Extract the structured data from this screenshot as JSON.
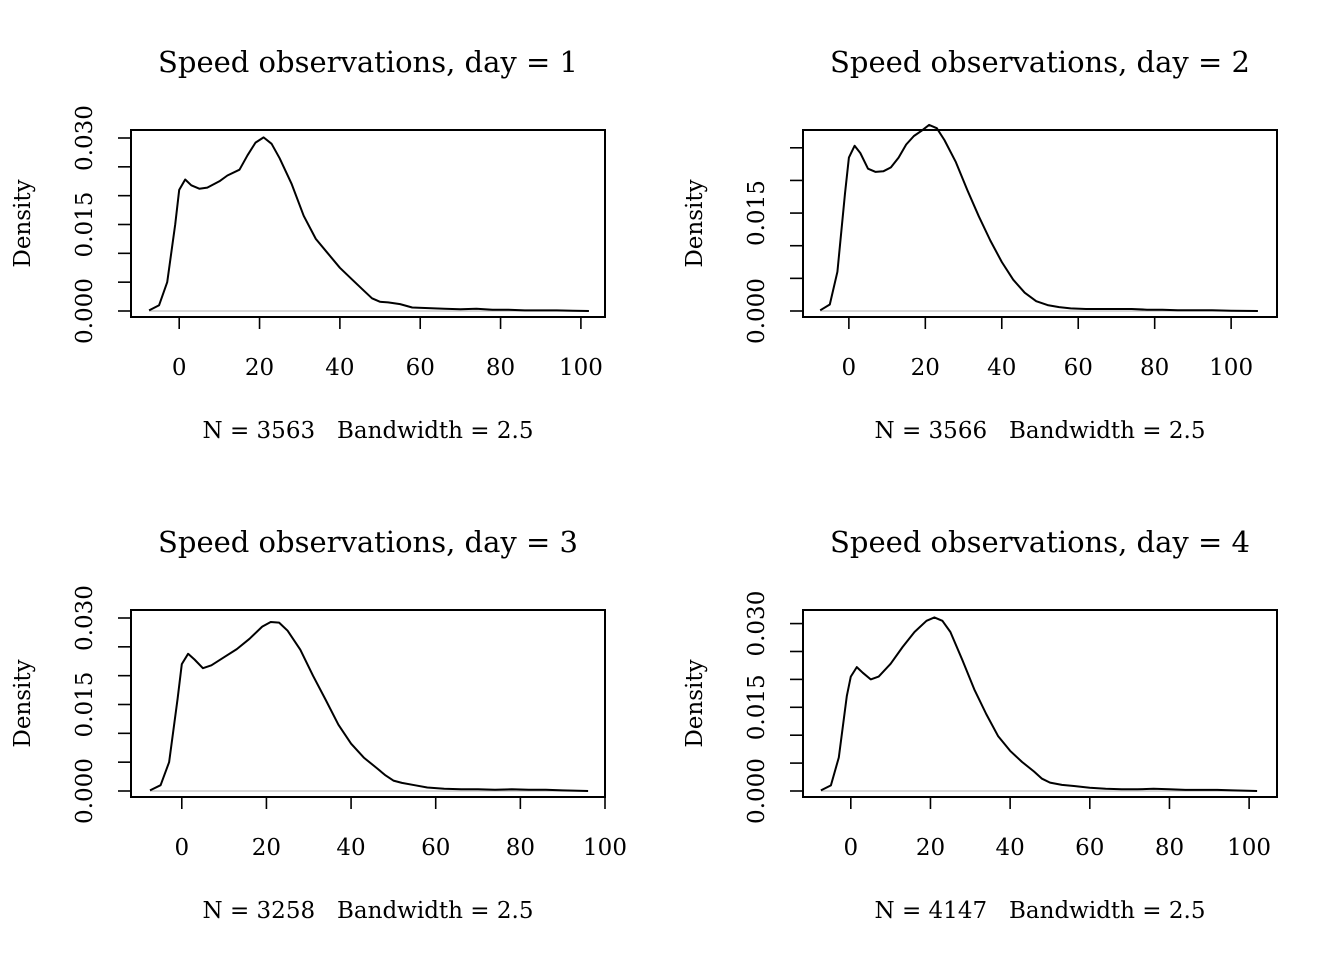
{
  "chart_data": [
    {
      "type": "line",
      "title": "Speed observations, day =  1",
      "subtitle": "N = 3563   Bandwidth = 2.5",
      "ylabel": "Density",
      "xlim": [
        -12,
        106
      ],
      "ylim": [
        0,
        0.03
      ],
      "x_ticks": [
        0,
        20,
        40,
        60,
        80,
        100
      ],
      "y_ticks": [
        0,
        0.005,
        0.01,
        0.015,
        0.02,
        0.025,
        0.03
      ],
      "y_tick_labels": [
        {
          "value": 0,
          "label": "0.000"
        },
        {
          "value": 0.015,
          "label": "0.015"
        },
        {
          "value": 0.03,
          "label": "0.030"
        }
      ],
      "grid": false,
      "series": [
        {
          "x": [
            -7.5,
            -5,
            -3,
            -1,
            0,
            1.5,
            3,
            5,
            7,
            10,
            12,
            15,
            17,
            19,
            21,
            23,
            25,
            28,
            31,
            34,
            37,
            40,
            43,
            46,
            48,
            50,
            52,
            55,
            58,
            62,
            66,
            70,
            74,
            78,
            82,
            86,
            90,
            94,
            98,
            102
          ],
          "y": [
            0.0001,
            0.001,
            0.005,
            0.015,
            0.021,
            0.0228,
            0.0218,
            0.0212,
            0.0214,
            0.0225,
            0.0235,
            0.0245,
            0.027,
            0.0292,
            0.0301,
            0.029,
            0.0265,
            0.022,
            0.0165,
            0.0125,
            0.01,
            0.0075,
            0.0055,
            0.0035,
            0.0022,
            0.0016,
            0.0015,
            0.0012,
            0.0006,
            0.0005,
            0.0004,
            0.0003,
            0.0004,
            0.0002,
            0.0002,
            0.0001,
            0.0001,
            0.0001,
            5e-05,
            0.0
          ]
        }
      ]
    },
    {
      "type": "line",
      "title": "Speed observations, day =  2",
      "subtitle": "N = 3566   Bandwidth = 2.5",
      "ylabel": "Density",
      "xlim": [
        -12,
        112
      ],
      "ylim": [
        0,
        0.0265
      ],
      "x_ticks": [
        0,
        20,
        40,
        60,
        80,
        100
      ],
      "y_ticks": [
        0,
        0.005,
        0.01,
        0.015,
        0.02,
        0.025
      ],
      "y_tick_labels": [
        {
          "value": 0,
          "label": "0.000"
        },
        {
          "value": 0.015,
          "label": "0.015"
        }
      ],
      "grid": false,
      "series": [
        {
          "x": [
            -7.5,
            -5,
            -3,
            -1,
            0,
            1.5,
            3,
            5,
            7,
            9,
            11,
            13,
            15,
            17,
            19,
            21,
            23,
            25,
            28,
            31,
            34,
            37,
            40,
            43,
            46,
            49,
            52,
            55,
            58,
            62,
            66,
            70,
            74,
            78,
            82,
            86,
            90,
            95,
            100,
            107
          ],
          "y": [
            0.0001,
            0.001,
            0.006,
            0.018,
            0.0235,
            0.0253,
            0.0242,
            0.0218,
            0.0213,
            0.0214,
            0.022,
            0.0235,
            0.0255,
            0.0268,
            0.0276,
            0.0285,
            0.028,
            0.0262,
            0.0228,
            0.0185,
            0.0145,
            0.0108,
            0.0075,
            0.0048,
            0.0028,
            0.0015,
            0.0009,
            0.0006,
            0.0004,
            0.0003,
            0.0003,
            0.0003,
            0.0003,
            0.0002,
            0.0002,
            0.0001,
            0.0001,
            0.0001,
            5e-05,
            0.0
          ]
        }
      ]
    },
    {
      "type": "line",
      "title": "Speed observations, day =  3",
      "subtitle": "N = 3258   Bandwidth = 2.5",
      "ylabel": "Density",
      "xlim": [
        -12,
        100
      ],
      "ylim": [
        0,
        0.03
      ],
      "x_ticks": [
        0,
        20,
        40,
        60,
        80,
        100
      ],
      "y_ticks": [
        0,
        0.005,
        0.01,
        0.015,
        0.02,
        0.025,
        0.03
      ],
      "y_tick_labels": [
        {
          "value": 0,
          "label": "0.000"
        },
        {
          "value": 0.015,
          "label": "0.015"
        },
        {
          "value": 0.03,
          "label": "0.030"
        }
      ],
      "grid": false,
      "series": [
        {
          "x": [
            -7.5,
            -5,
            -3,
            -1,
            0,
            1.5,
            3,
            5,
            7,
            10,
            13,
            16,
            19,
            21,
            23,
            25,
            28,
            31,
            34,
            37,
            40,
            43,
            46,
            48,
            50,
            52,
            55,
            58,
            62,
            66,
            70,
            74,
            78,
            82,
            86,
            90,
            96
          ],
          "y": [
            0.0001,
            0.001,
            0.005,
            0.016,
            0.022,
            0.0238,
            0.0228,
            0.0213,
            0.0218,
            0.0232,
            0.0246,
            0.0264,
            0.0285,
            0.0293,
            0.0292,
            0.0278,
            0.0245,
            0.02,
            0.0158,
            0.0115,
            0.0082,
            0.0058,
            0.004,
            0.0028,
            0.0018,
            0.0014,
            0.001,
            0.0006,
            0.0004,
            0.0003,
            0.0003,
            0.0002,
            0.0003,
            0.0002,
            0.0002,
            0.0001,
            0.0
          ]
        }
      ]
    },
    {
      "type": "line",
      "title": "Speed observations, day =  4",
      "subtitle": "N = 4147   Bandwidth = 2.5",
      "ylabel": "Density",
      "xlim": [
        -12,
        107
      ],
      "ylim": [
        0,
        0.031
      ],
      "x_ticks": [
        0,
        20,
        40,
        60,
        80,
        100
      ],
      "y_ticks": [
        0,
        0.005,
        0.01,
        0.015,
        0.02,
        0.025,
        0.03
      ],
      "y_tick_labels": [
        {
          "value": 0,
          "label": "0.000"
        },
        {
          "value": 0.015,
          "label": "0.015"
        },
        {
          "value": 0.03,
          "label": "0.030"
        }
      ],
      "grid": false,
      "series": [
        {
          "x": [
            -7.5,
            -5,
            -3,
            -1,
            0,
            1.5,
            3,
            5,
            7,
            10,
            13,
            16,
            19,
            21,
            23,
            25,
            28,
            31,
            34,
            37,
            40,
            43,
            46,
            48,
            50,
            53,
            56,
            60,
            64,
            68,
            72,
            76,
            80,
            84,
            88,
            92,
            96,
            102
          ],
          "y": [
            0.0001,
            0.001,
            0.006,
            0.017,
            0.0205,
            0.0222,
            0.0212,
            0.02,
            0.0205,
            0.0228,
            0.0258,
            0.0285,
            0.0305,
            0.0311,
            0.0305,
            0.0285,
            0.0235,
            0.0182,
            0.0138,
            0.0098,
            0.0072,
            0.0052,
            0.0035,
            0.0022,
            0.0015,
            0.0011,
            0.0009,
            0.0006,
            0.0004,
            0.0003,
            0.0003,
            0.0004,
            0.0003,
            0.0002,
            0.0002,
            0.0002,
            0.0001,
            0.0
          ]
        }
      ]
    }
  ]
}
